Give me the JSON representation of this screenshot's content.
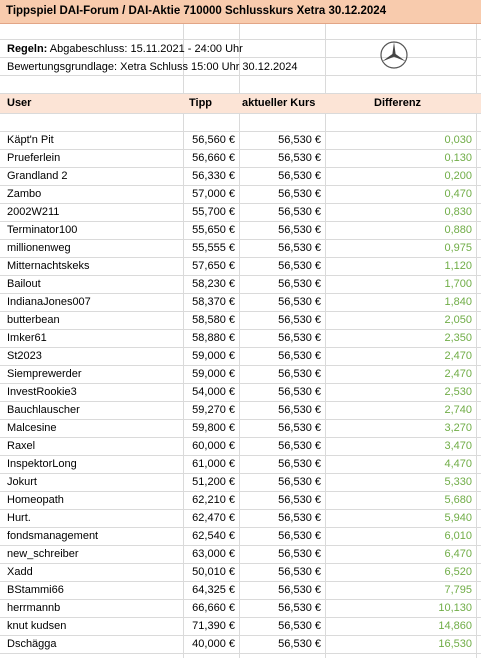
{
  "title": "Tippspiel DAI-Forum / DAI-Aktie 710000 Schlusskurs Xetra 30.12.2024",
  "rules": {
    "label": "Regeln:",
    "text": "Abgabeschluss: 15.11.2021 - 24:00 Uhr",
    "basis": "Bewertungsgrundlage: Xetra Schluss 15:00 Uhr 30.12.2024"
  },
  "logo_icon": "mercedes-star-icon",
  "headers": {
    "user": "User",
    "tipp": "Tipp",
    "kurs": "aktueller Kurs",
    "diff": "Differenz"
  },
  "accent_colors": {
    "title_bg": "#f8cbad",
    "header_bg": "#fce4d6",
    "diff_text": "#70ad47"
  },
  "rows": [
    {
      "user": "Käpt'n Pit",
      "tipp": "56,560 €",
      "kurs": "56,530 €",
      "diff": "0,030"
    },
    {
      "user": "Prueferlein",
      "tipp": "56,660 €",
      "kurs": "56,530 €",
      "diff": "0,130"
    },
    {
      "user": "Grandland 2",
      "tipp": "56,330 €",
      "kurs": "56,530 €",
      "diff": "0,200"
    },
    {
      "user": "Zambo",
      "tipp": "57,000 €",
      "kurs": "56,530 €",
      "diff": "0,470"
    },
    {
      "user": "2002W211",
      "tipp": "55,700 €",
      "kurs": "56,530 €",
      "diff": "0,830"
    },
    {
      "user": "Terminator100",
      "tipp": "55,650 €",
      "kurs": "56,530 €",
      "diff": "0,880"
    },
    {
      "user": "millionenweg",
      "tipp": "55,555 €",
      "kurs": "56,530 €",
      "diff": "0,975"
    },
    {
      "user": "Mitternachtskeks",
      "tipp": "57,650 €",
      "kurs": "56,530 €",
      "diff": "1,120"
    },
    {
      "user": "Bailout",
      "tipp": "58,230 €",
      "kurs": "56,530 €",
      "diff": "1,700"
    },
    {
      "user": "IndianaJones007",
      "tipp": "58,370 €",
      "kurs": "56,530 €",
      "diff": "1,840"
    },
    {
      "user": "butterbean",
      "tipp": "58,580 €",
      "kurs": "56,530 €",
      "diff": "2,050"
    },
    {
      "user": "Imker61",
      "tipp": "58,880 €",
      "kurs": "56,530 €",
      "diff": "2,350"
    },
    {
      "user": "St2023",
      "tipp": "59,000 €",
      "kurs": "56,530 €",
      "diff": "2,470"
    },
    {
      "user": "Siemprewerder",
      "tipp": "59,000 €",
      "kurs": "56,530 €",
      "diff": "2,470"
    },
    {
      "user": "InvestRookie3",
      "tipp": "54,000 €",
      "kurs": "56,530 €",
      "diff": "2,530"
    },
    {
      "user": "Bauchlauscher",
      "tipp": "59,270 €",
      "kurs": "56,530 €",
      "diff": "2,740"
    },
    {
      "user": "Malcesine",
      "tipp": "59,800 €",
      "kurs": "56,530 €",
      "diff": "3,270"
    },
    {
      "user": "Raxel",
      "tipp": "60,000 €",
      "kurs": "56,530 €",
      "diff": "3,470"
    },
    {
      "user": "InspektorLong",
      "tipp": "61,000 €",
      "kurs": "56,530 €",
      "diff": "4,470"
    },
    {
      "user": "Jokurt",
      "tipp": "51,200 €",
      "kurs": "56,530 €",
      "diff": "5,330"
    },
    {
      "user": "Homeopath",
      "tipp": "62,210 €",
      "kurs": "56,530 €",
      "diff": "5,680"
    },
    {
      "user": "Hurt.",
      "tipp": "62,470 €",
      "kurs": "56,530 €",
      "diff": "5,940"
    },
    {
      "user": "fondsmanagement",
      "tipp": "62,540 €",
      "kurs": "56,530 €",
      "diff": "6,010"
    },
    {
      "user": "new_schreiber",
      "tipp": "63,000 €",
      "kurs": "56,530 €",
      "diff": "6,470"
    },
    {
      "user": "Xadd",
      "tipp": "50,010 €",
      "kurs": "56,530 €",
      "diff": "6,520"
    },
    {
      "user": "BStammi66",
      "tipp": "64,325 €",
      "kurs": "56,530 €",
      "diff": "7,795"
    },
    {
      "user": "herrmannb",
      "tipp": "66,660 €",
      "kurs": "56,530 €",
      "diff": "10,130"
    },
    {
      "user": "knut kudsen",
      "tipp": "71,390 €",
      "kurs": "56,530 €",
      "diff": "14,860"
    },
    {
      "user": "Dschägga",
      "tipp": "40,000 €",
      "kurs": "56,530 €",
      "diff": "16,530"
    }
  ]
}
